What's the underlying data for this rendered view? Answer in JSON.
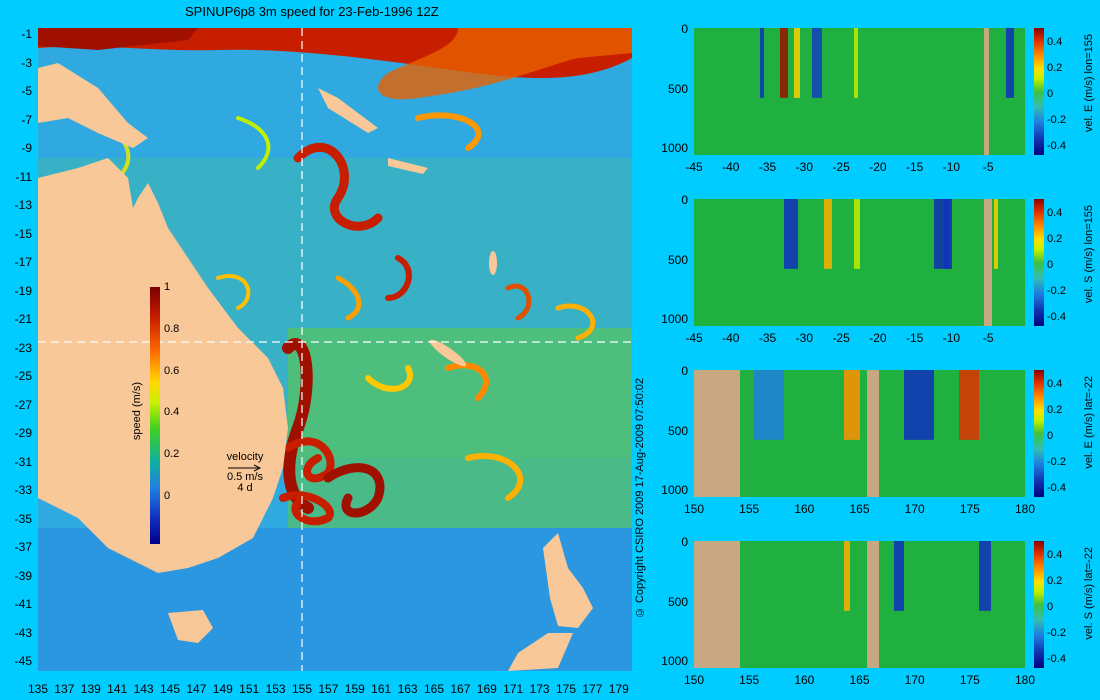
{
  "title": "SPINUP6p8 3m speed for 23-Feb-1996 12Z",
  "copyright": "© Copyright CSIRO 2009   17-Aug-2009 07:50:02",
  "colors": {
    "background": "#00ccff",
    "land": "#f8c898",
    "section_land": "#c8a882"
  },
  "map": {
    "lat_ticks": [
      "-1",
      "-3",
      "-5",
      "-7",
      "-9",
      "-11",
      "-13",
      "-15",
      "-17",
      "-19",
      "-21",
      "-23",
      "-25",
      "-27",
      "-29",
      "-31",
      "-33",
      "-35",
      "-37",
      "-39",
      "-41",
      "-43",
      "-45"
    ],
    "lon_ticks": [
      "135",
      "137",
      "139",
      "141",
      "143",
      "145",
      "147",
      "149",
      "151",
      "153",
      "155",
      "157",
      "159",
      "161",
      "163",
      "165",
      "167",
      "169",
      "171",
      "173",
      "175",
      "177",
      "179"
    ],
    "colorbar": {
      "label": "speed (m/s)",
      "ticks": [
        "1",
        "0.8",
        "0.6",
        "0.4",
        "0.2",
        "0"
      ]
    },
    "velocity_key": {
      "label": "velocity",
      "value": "0.5 m/s",
      "duration": "4 d"
    },
    "section_lines": [
      "lon=155",
      "lat=-22"
    ]
  },
  "panels": [
    {
      "ylabel": "vel. E (m/s) lon=155",
      "x_ticks": [
        "-45",
        "-40",
        "-35",
        "-30",
        "-25",
        "-20",
        "-15",
        "-10",
        "-5"
      ],
      "y_ticks": [
        "0",
        "500",
        "1000"
      ],
      "cbar_ticks": [
        "0.4",
        "0.2",
        "0",
        "-0.2",
        "-0.4"
      ]
    },
    {
      "ylabel": "vel. S (m/s) lon=155",
      "x_ticks": [
        "-45",
        "-40",
        "-35",
        "-30",
        "-25",
        "-20",
        "-15",
        "-10",
        "-5"
      ],
      "y_ticks": [
        "0",
        "500",
        "1000"
      ],
      "cbar_ticks": [
        "0.4",
        "0.2",
        "0",
        "-0.2",
        "-0.4"
      ]
    },
    {
      "ylabel": "vel. E (m/s) lat=-22",
      "x_ticks": [
        "150",
        "155",
        "160",
        "165",
        "170",
        "175",
        "180"
      ],
      "y_ticks": [
        "0",
        "500",
        "1000"
      ],
      "cbar_ticks": [
        "0.4",
        "0.2",
        "0",
        "-0.2",
        "-0.4"
      ]
    },
    {
      "ylabel": "vel. S (m/s) lat=-22",
      "x_ticks": [
        "150",
        "155",
        "160",
        "165",
        "170",
        "175",
        "180"
      ],
      "y_ticks": [
        "0",
        "500",
        "1000"
      ],
      "cbar_ticks": [
        "0.4",
        "0.2",
        "0",
        "-0.2",
        "-0.4"
      ]
    }
  ],
  "chart_data": [
    {
      "type": "heatmap",
      "title": "SPINUP6p8 3m speed for 23-Feb-1996 12Z",
      "xlabel": "",
      "ylabel": "",
      "xlim": [
        135,
        180
      ],
      "ylim": [
        -45,
        0
      ],
      "colorbar": {
        "label": "speed (m/s)",
        "range": [
          0,
          1
        ]
      }
    },
    {
      "type": "heatmap",
      "xlim": [
        -45,
        0
      ],
      "ylim": [
        1050,
        0
      ],
      "colorbar": {
        "label": "vel. E (m/s) lon=155",
        "range": [
          -0.4,
          0.5
        ]
      }
    },
    {
      "type": "heatmap",
      "xlim": [
        -45,
        0
      ],
      "ylim": [
        1050,
        0
      ],
      "colorbar": {
        "label": "vel. S (m/s) lon=155",
        "range": [
          -0.4,
          0.5
        ]
      }
    },
    {
      "type": "heatmap",
      "xlim": [
        150,
        180
      ],
      "ylim": [
        1050,
        0
      ],
      "colorbar": {
        "label": "vel. E (m/s) lat=-22",
        "range": [
          -0.4,
          0.5
        ]
      }
    },
    {
      "type": "heatmap",
      "xlim": [
        150,
        180
      ],
      "ylim": [
        1050,
        0
      ],
      "colorbar": {
        "label": "vel. S (m/s) lat=-22",
        "range": [
          -0.4,
          0.5
        ]
      }
    }
  ]
}
